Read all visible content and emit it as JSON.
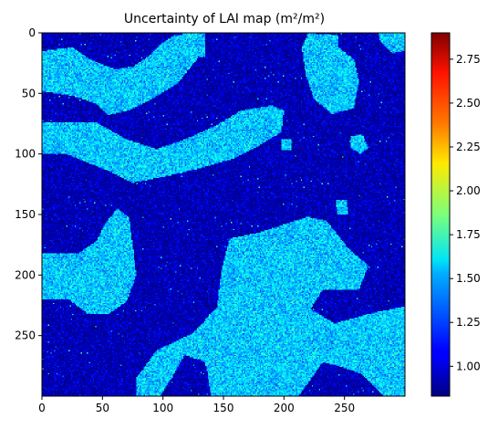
{
  "chart_data": {
    "type": "heatmap",
    "title": "Uncertainty of LAI map (m²/m²)",
    "xlabel": "",
    "ylabel": "",
    "grid_size": [
      300,
      300
    ],
    "xlim": [
      0,
      300
    ],
    "ylim": [
      300,
      0
    ],
    "x_ticks": [
      0,
      50,
      100,
      150,
      200,
      250
    ],
    "y_ticks": [
      0,
      50,
      100,
      150,
      200,
      250
    ],
    "colorbar": {
      "colormap": "jet",
      "range": [
        0.83,
        2.9
      ],
      "ticks": [
        "1.00",
        "1.25",
        "1.50",
        "1.75",
        "2.00",
        "2.25",
        "2.50",
        "2.75"
      ]
    },
    "background_value_range": [
      0.85,
      1.15
    ],
    "patch_value_range": [
      1.2,
      1.8
    ],
    "patches": [
      {
        "name": "upper-left patch",
        "polygon": [
          [
            0,
            15
          ],
          [
            25,
            12
          ],
          [
            40,
            22
          ],
          [
            60,
            30
          ],
          [
            75,
            28
          ],
          [
            90,
            18
          ],
          [
            100,
            8
          ],
          [
            110,
            2
          ],
          [
            130,
            2
          ],
          [
            135,
            8
          ],
          [
            128,
            22
          ],
          [
            112,
            42
          ],
          [
            90,
            55
          ],
          [
            72,
            64
          ],
          [
            55,
            68
          ],
          [
            44,
            58
          ],
          [
            25,
            52
          ],
          [
            0,
            48
          ]
        ]
      },
      {
        "name": "top-center patch",
        "polygon": [
          [
            116,
            0
          ],
          [
            135,
            0
          ],
          [
            135,
            20
          ],
          [
            116,
            20
          ]
        ]
      },
      {
        "name": "middle-left band",
        "polygon": [
          [
            0,
            74
          ],
          [
            45,
            74
          ],
          [
            70,
            88
          ],
          [
            95,
            96
          ],
          [
            118,
            88
          ],
          [
            145,
            76
          ],
          [
            165,
            64
          ],
          [
            190,
            60
          ],
          [
            200,
            64
          ],
          [
            198,
            82
          ],
          [
            178,
            94
          ],
          [
            158,
            104
          ],
          [
            130,
            112
          ],
          [
            105,
            118
          ],
          [
            75,
            124
          ],
          [
            55,
            114
          ],
          [
            20,
            100
          ],
          [
            0,
            100
          ]
        ]
      },
      {
        "name": "top-right patch",
        "polygon": [
          [
            220,
            0
          ],
          [
            245,
            2
          ],
          [
            245,
            12
          ],
          [
            258,
            22
          ],
          [
            262,
            40
          ],
          [
            258,
            62
          ],
          [
            240,
            67
          ],
          [
            225,
            55
          ],
          [
            218,
            35
          ],
          [
            215,
            12
          ]
        ]
      },
      {
        "name": "top-right corner patch",
        "polygon": [
          [
            278,
            0
          ],
          [
            300,
            0
          ],
          [
            300,
            15
          ],
          [
            290,
            17
          ],
          [
            280,
            8
          ]
        ]
      },
      {
        "name": "small right patch",
        "polygon": [
          [
            255,
            85
          ],
          [
            265,
            84
          ],
          [
            270,
            95
          ],
          [
            263,
            100
          ],
          [
            255,
            95
          ]
        ]
      },
      {
        "name": "small dot patch",
        "polygon": [
          [
            198,
            88
          ],
          [
            206,
            88
          ],
          [
            206,
            97
          ],
          [
            198,
            97
          ]
        ]
      },
      {
        "name": "small right-mid patch",
        "polygon": [
          [
            243,
            138
          ],
          [
            252,
            138
          ],
          [
            253,
            150
          ],
          [
            244,
            150
          ]
        ]
      },
      {
        "name": "left mid patch",
        "polygon": [
          [
            0,
            182
          ],
          [
            30,
            182
          ],
          [
            45,
            172
          ],
          [
            52,
            158
          ],
          [
            62,
            145
          ],
          [
            72,
            152
          ],
          [
            75,
            175
          ],
          [
            78,
            200
          ],
          [
            70,
            222
          ],
          [
            55,
            232
          ],
          [
            38,
            232
          ],
          [
            22,
            220
          ],
          [
            0,
            220
          ]
        ]
      },
      {
        "name": "large bottom-center patch",
        "polygon": [
          [
            155,
            170
          ],
          [
            180,
            165
          ],
          [
            200,
            158
          ],
          [
            220,
            152
          ],
          [
            235,
            155
          ],
          [
            255,
            180
          ],
          [
            270,
            192
          ],
          [
            262,
            212
          ],
          [
            232,
            212
          ],
          [
            222,
            228
          ],
          [
            242,
            240
          ],
          [
            270,
            232
          ],
          [
            300,
            226
          ],
          [
            300,
            300
          ],
          [
            282,
            300
          ],
          [
            265,
            282
          ],
          [
            245,
            275
          ],
          [
            232,
            272
          ],
          [
            225,
            282
          ],
          [
            212,
            300
          ],
          [
            140,
            300
          ],
          [
            135,
            272
          ],
          [
            118,
            266
          ],
          [
            110,
            280
          ],
          [
            98,
            300
          ],
          [
            78,
            300
          ],
          [
            78,
            285
          ],
          [
            95,
            262
          ],
          [
            125,
            248
          ],
          [
            145,
            226
          ],
          [
            148,
            198
          ]
        ]
      }
    ]
  }
}
